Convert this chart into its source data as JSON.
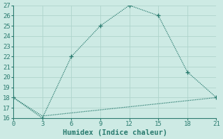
{
  "xlabel": "Humidex (Indice chaleur)",
  "x_line1": [
    0,
    3,
    6,
    9,
    12,
    15,
    18,
    21
  ],
  "y_line1": [
    18,
    16,
    22,
    25,
    27,
    26,
    20.5,
    18
  ],
  "x_line2": [
    0,
    3,
    6,
    9,
    12,
    15,
    18,
    21
  ],
  "y_line2": [
    18,
    16.2,
    16.5,
    16.8,
    17.1,
    17.4,
    17.7,
    18
  ],
  "line_color": "#2a7b6f",
  "bg_color": "#cdeae4",
  "grid_color": "#aed4cc",
  "xlim": [
    0,
    21
  ],
  "ylim": [
    16,
    27
  ],
  "xticks": [
    0,
    3,
    6,
    9,
    12,
    15,
    18,
    21
  ],
  "yticks": [
    16,
    17,
    18,
    19,
    20,
    21,
    22,
    23,
    24,
    25,
    26,
    27
  ],
  "tick_fontsize": 6.5,
  "xlabel_fontsize": 7.5
}
